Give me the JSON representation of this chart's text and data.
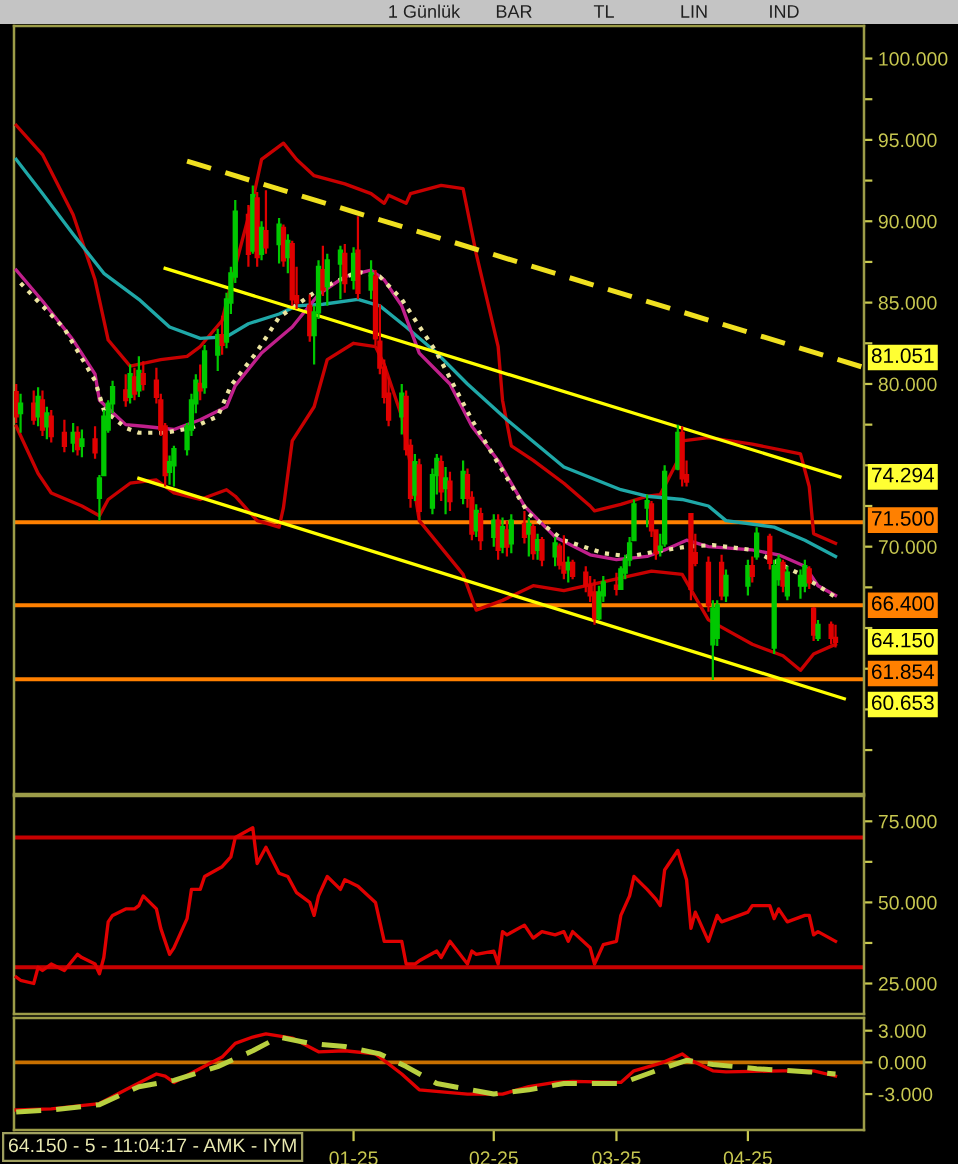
{
  "chart_data": [
    {
      "type": "candlestick",
      "x": [
        "2024-10-17",
        "2024-10-18",
        "2024-10-21",
        "2024-10-22",
        "2024-10-23",
        "2024-10-24",
        "2024-10-25",
        "2024-10-28",
        "2024-10-30",
        "2024-10-31",
        "2024-11-01",
        "2024-11-04",
        "2024-11-05",
        "2024-11-06",
        "2024-11-07",
        "2024-11-08",
        "2024-11-11",
        "2024-11-12",
        "2024-11-13",
        "2024-11-14",
        "2024-11-15",
        "2024-11-18",
        "2024-11-19",
        "2024-11-20",
        "2024-11-21",
        "2024-11-22",
        "2024-11-25",
        "2024-11-26",
        "2024-11-27",
        "2024-11-28",
        "2024-11-29",
        "2024-12-02",
        "2024-12-03",
        "2024-12-04",
        "2024-12-05",
        "2024-12-06",
        "2024-12-09",
        "2024-12-10",
        "2024-12-11",
        "2024-12-12",
        "2024-12-13",
        "2024-12-16",
        "2024-12-17",
        "2024-12-18",
        "2024-12-19",
        "2024-12-20",
        "2024-12-23",
        "2024-12-24",
        "2024-12-25",
        "2024-12-26",
        "2024-12-27",
        "2024-12-30",
        "2024-12-31",
        "2025-01-02",
        "2025-01-03",
        "2025-01-06",
        "2025-01-07",
        "2025-01-08",
        "2025-01-09",
        "2025-01-10",
        "2025-01-13",
        "2025-01-14",
        "2025-01-15",
        "2025-01-16",
        "2025-01-17",
        "2025-01-20",
        "2025-01-21",
        "2025-01-22",
        "2025-01-23",
        "2025-01-24",
        "2025-01-27",
        "2025-01-28",
        "2025-01-29",
        "2025-01-30",
        "2025-01-31",
        "2025-02-03",
        "2025-02-04",
        "2025-02-05",
        "2025-02-06",
        "2025-02-07",
        "2025-02-10",
        "2025-02-11",
        "2025-02-12",
        "2025-02-13",
        "2025-02-14",
        "2025-02-17",
        "2025-02-18",
        "2025-02-19",
        "2025-02-20",
        "2025-02-21",
        "2025-02-24",
        "2025-02-25",
        "2025-02-26",
        "2025-02-27",
        "2025-02-28",
        "2025-03-03",
        "2025-03-04",
        "2025-03-05",
        "2025-03-06",
        "2025-03-07",
        "2025-03-10",
        "2025-03-11",
        "2025-03-12",
        "2025-03-13",
        "2025-03-14",
        "2025-03-17",
        "2025-03-18",
        "2025-03-19",
        "2025-03-20",
        "2025-03-21",
        "2025-03-24",
        "2025-03-25",
        "2025-03-26",
        "2025-03-27",
        "2025-03-28",
        "2025-04-02",
        "2025-04-03",
        "2025-04-04",
        "2025-04-07",
        "2025-04-08",
        "2025-04-09",
        "2025-04-10",
        "2025-04-11",
        "2025-04-14",
        "2025-04-15",
        "2025-04-16",
        "2025-04-17",
        "2025-04-18",
        "2025-04-21",
        "2025-04-22"
      ],
      "ohlc": [
        [
          79.5,
          80.0,
          77.6,
          78.0
        ],
        [
          78.2,
          79.4,
          77.0,
          78.8
        ],
        [
          78.8,
          79.6,
          77.5,
          77.8
        ],
        [
          78.0,
          79.8,
          77.4,
          79.2
        ],
        [
          79.0,
          79.6,
          76.8,
          77.2
        ],
        [
          77.4,
          78.6,
          76.6,
          78.2
        ],
        [
          78.0,
          78.4,
          76.4,
          76.8
        ],
        [
          77.0,
          77.8,
          75.8,
          76.2
        ],
        [
          76.4,
          77.6,
          75.8,
          77.0
        ],
        [
          77.0,
          77.4,
          75.6,
          76.0
        ],
        [
          76.2,
          77.2,
          75.5,
          76.6
        ],
        [
          76.6,
          77.4,
          75.4,
          75.8
        ],
        [
          73.0,
          74.4,
          71.6,
          74.2
        ],
        [
          74.4,
          78.4,
          74.4,
          78.0
        ],
        [
          77.2,
          79.0,
          77.0,
          78.8
        ],
        [
          78.8,
          80.2,
          78.2,
          79.8
        ],
        [
          79.6,
          80.6,
          78.6,
          79.0
        ],
        [
          79.2,
          81.2,
          78.8,
          80.6
        ],
        [
          80.4,
          81.0,
          79.0,
          79.4
        ],
        [
          79.6,
          81.7,
          79.2,
          80.8
        ],
        [
          80.6,
          81.4,
          79.6,
          80.0
        ],
        [
          80.2,
          81.0,
          78.8,
          79.2
        ],
        [
          79.0,
          79.4,
          76.8,
          77.2
        ],
        [
          77.4,
          77.6,
          73.7,
          74.4
        ],
        [
          74.6,
          75.6,
          73.8,
          75.2
        ],
        [
          75.0,
          76.2,
          73.7,
          76.0
        ],
        [
          76.0,
          77.6,
          75.6,
          77.4
        ],
        [
          77.2,
          79.4,
          76.8,
          79.0
        ],
        [
          78.8,
          80.6,
          78.2,
          80.2
        ],
        [
          80.0,
          81.2,
          79.0,
          79.6
        ],
        [
          79.8,
          82.4,
          79.4,
          82.0
        ],
        [
          81.8,
          83.4,
          80.8,
          83.0
        ],
        [
          83.0,
          84.2,
          81.8,
          82.4
        ],
        [
          82.6,
          85.6,
          82.2,
          85.2
        ],
        [
          85.0,
          87.2,
          84.3,
          86.8
        ],
        [
          86.6,
          91.3,
          86.2,
          90.6
        ],
        [
          90.4,
          91.0,
          87.2,
          88.0
        ],
        [
          88.2,
          92.2,
          88.0,
          91.6
        ],
        [
          91.4,
          91.8,
          87.2,
          87.8
        ],
        [
          88.0,
          90.0,
          87.6,
          89.6
        ],
        [
          89.4,
          91.9,
          88.0,
          88.4
        ],
        [
          88.6,
          90.2,
          87.4,
          89.8
        ],
        [
          89.6,
          89.8,
          87.2,
          87.6
        ],
        [
          87.8,
          89.2,
          86.8,
          88.8
        ],
        [
          88.6,
          88.8,
          84.8,
          85.2
        ],
        [
          85.4,
          87.2,
          84.6,
          85.0
        ],
        [
          84.8,
          85.5,
          82.6,
          83.0
        ],
        [
          83.0,
          84.8,
          81.2,
          84.4
        ],
        [
          84.4,
          87.6,
          84.0,
          87.2
        ],
        [
          87.0,
          88.5,
          85.4,
          85.8
        ],
        [
          86.0,
          88.0,
          84.8,
          87.6
        ],
        [
          87.4,
          88.5,
          85.2,
          88.2
        ],
        [
          88.0,
          88.6,
          85.6,
          86.2
        ],
        [
          86.4,
          88.4,
          85.8,
          88.0
        ],
        [
          88.2,
          90.3,
          85.2,
          85.6
        ],
        [
          85.8,
          87.6,
          85.2,
          86.8
        ],
        [
          86.6,
          87.0,
          82.4,
          82.8
        ],
        [
          82.6,
          84.9,
          80.6,
          81.0
        ],
        [
          81.0,
          81.5,
          78.8,
          79.2
        ],
        [
          79.4,
          80.4,
          77.4,
          77.8
        ],
        [
          78.0,
          80.0,
          76.9,
          79.4
        ],
        [
          79.2,
          79.6,
          75.6,
          76.0
        ],
        [
          76.2,
          76.6,
          72.4,
          73.0
        ],
        [
          73.2,
          75.7,
          72.8,
          75.2
        ],
        [
          75.0,
          75.4,
          71.6,
          72.2
        ],
        [
          72.4,
          74.8,
          72.0,
          74.4
        ],
        [
          74.4,
          75.7,
          73.2,
          75.4
        ],
        [
          75.2,
          75.6,
          72.8,
          73.4
        ],
        [
          73.6,
          74.9,
          72.0,
          74.2
        ],
        [
          74.0,
          74.6,
          72.2,
          72.8
        ],
        [
          73.0,
          75.3,
          72.6,
          74.6
        ],
        [
          74.4,
          74.8,
          72.4,
          73.0
        ],
        [
          73.0,
          73.4,
          70.4,
          70.8
        ],
        [
          71.0,
          72.6,
          70.6,
          72.2
        ],
        [
          72.0,
          72.4,
          69.8,
          70.4
        ],
        [
          70.6,
          72.0,
          70.0,
          71.6
        ],
        [
          71.6,
          72.0,
          69.2,
          69.8
        ],
        [
          70.0,
          71.8,
          69.6,
          71.2
        ],
        [
          71.0,
          71.6,
          69.4,
          70.0
        ],
        [
          70.2,
          72.0,
          69.6,
          71.6
        ],
        [
          71.4,
          72.2,
          70.2,
          70.6
        ],
        [
          70.8,
          71.8,
          69.4,
          71.4
        ],
        [
          71.2,
          71.4,
          69.2,
          69.6
        ],
        [
          69.8,
          70.8,
          69.2,
          70.4
        ],
        [
          70.4,
          70.6,
          68.8,
          69.2
        ],
        [
          69.4,
          70.6,
          68.8,
          70.2
        ],
        [
          70.0,
          70.2,
          68.6,
          68.9
        ],
        [
          69.0,
          70.7,
          68.0,
          68.4
        ],
        [
          68.6,
          69.4,
          67.8,
          69.0
        ],
        [
          69.0,
          69.2,
          68.0,
          68.2
        ],
        [
          68.4,
          68.8,
          67.2,
          67.6
        ],
        [
          67.6,
          68.2,
          66.6,
          67.0
        ],
        [
          67.2,
          68.0,
          65.2,
          65.6
        ],
        [
          65.6,
          67.6,
          65.5,
          67.2
        ],
        [
          67.0,
          68.2,
          66.6,
          67.8
        ],
        [
          67.6,
          68.4,
          67.0,
          67.4
        ],
        [
          67.4,
          68.8,
          67.4,
          68.6
        ],
        [
          68.4,
          69.5,
          68.0,
          69.2
        ],
        [
          69.2,
          70.6,
          68.8,
          70.2
        ],
        [
          70.4,
          72.9,
          70.4,
          72.6
        ],
        [
          72.4,
          73.2,
          71.2,
          72.8
        ],
        [
          72.6,
          72.8,
          70.6,
          71.0
        ],
        [
          71.0,
          71.0,
          69.2,
          69.6
        ],
        [
          69.8,
          70.8,
          69.4,
          70.0
        ],
        [
          70.2,
          75.0,
          70.0,
          74.6
        ],
        [
          74.8,
          77.5,
          74.7,
          77.0
        ],
        [
          77.0,
          77.4,
          73.7,
          74.2
        ],
        [
          74.4,
          75.3,
          73.7,
          74.0
        ],
        [
          72.0,
          72.0,
          66.7,
          67.4
        ],
        [
          69.6,
          70.8,
          68.8,
          69.0
        ],
        [
          69.0,
          69.4,
          66.0,
          66.4
        ],
        [
          64.0,
          66.7,
          61.8,
          66.2
        ],
        [
          64.4,
          66.7,
          63.9,
          66.4
        ],
        [
          69.0,
          69.5,
          66.7,
          67.0
        ],
        [
          67.0,
          68.6,
          66.6,
          68.2
        ],
        [
          67.6,
          69.2,
          67.0,
          68.8
        ],
        [
          68.8,
          69.4,
          67.8,
          68.2
        ],
        [
          69.4,
          71.2,
          69.2,
          70.8
        ],
        [
          70.6,
          70.8,
          68.6,
          69.0
        ],
        [
          63.8,
          69.2,
          63.4,
          68.8
        ],
        [
          68.0,
          69.5,
          67.6,
          69.2
        ],
        [
          69.0,
          69.2,
          67.2,
          67.6
        ],
        [
          67.0,
          68.8,
          66.7,
          68.4
        ],
        [
          67.6,
          68.6,
          66.8,
          68.2
        ],
        [
          67.6,
          69.2,
          67.2,
          68.8
        ],
        [
          68.6,
          68.8,
          67.4,
          67.8
        ],
        [
          66.2,
          66.3,
          64.2,
          64.6
        ],
        [
          64.4,
          65.5,
          64.2,
          65.2
        ],
        [
          65.2,
          65.4,
          64.0,
          64.4
        ],
        [
          64.4,
          65.2,
          63.8,
          64.15
        ]
      ],
      "colors": [
        "#e00000",
        "#00c800",
        "#e00000",
        "#00c800",
        "#e00000",
        "#00c800",
        "#e00000",
        "#e00000",
        "#00c800",
        "#e00000",
        "#00c800",
        "#e00000",
        "#00c800",
        "#00c800",
        "#00c800",
        "#00c800",
        "#e00000",
        "#00c800",
        "#e00000",
        "#00c800",
        "#e00000",
        "#e00000",
        "#e00000",
        "#e00000",
        "#00c800",
        "#00c800",
        "#00c800",
        "#00c800",
        "#00c800",
        "#e00000",
        "#00c800",
        "#00c800",
        "#e00000",
        "#00c800",
        "#00c800",
        "#00c800",
        "#e00000",
        "#00c800",
        "#e00000",
        "#00c800",
        "#e00000",
        "#00c800",
        "#e00000",
        "#00c800",
        "#e00000",
        "#e00000",
        "#e00000",
        "#00c800",
        "#00c800",
        "#e00000",
        "#00c800",
        "#00c800",
        "#e00000",
        "#00c800",
        "#e00000",
        "#00c800",
        "#e00000",
        "#e00000",
        "#e00000",
        "#e00000",
        "#00c800",
        "#e00000",
        "#e00000",
        "#00c800",
        "#e00000",
        "#00c800",
        "#00c800",
        "#e00000",
        "#00c800",
        "#e00000",
        "#00c800",
        "#e00000",
        "#e00000",
        "#00c800",
        "#e00000",
        "#00c800",
        "#e00000",
        "#00c800",
        "#e00000",
        "#00c800",
        "#e00000",
        "#00c800",
        "#e00000",
        "#00c800",
        "#e00000",
        "#00c800",
        "#e00000",
        "#e00000",
        "#00c800",
        "#e00000",
        "#e00000",
        "#e00000",
        "#e00000",
        "#00c800",
        "#00c800",
        "#e00000",
        "#00c800",
        "#00c800",
        "#00c800",
        "#00c800",
        "#00c800",
        "#e00000",
        "#e00000",
        "#00c800",
        "#00c800",
        "#00c800",
        "#e00000",
        "#e00000",
        "#e00000",
        "#e00000",
        "#e00000",
        "#00c800",
        "#00c800",
        "#e00000",
        "#00c800",
        "#00c800",
        "#e00000",
        "#00c800",
        "#e00000",
        "#00c800",
        "#00c800",
        "#e00000",
        "#00c800",
        "#00c800",
        "#00c800",
        "#e00000",
        "#e00000",
        "#00c800",
        "#e00000",
        "#e00000"
      ],
      "series": [
        {
          "type": "line",
          "color": "#c80000",
          "x": [
            "2024-10-17",
            "2024-10-23",
            "2024-10-30",
            "2024-11-04",
            "2024-11-07",
            "2024-11-12",
            "2024-11-19",
            "2024-11-25",
            "2024-11-28",
            "2024-12-03",
            "2024-12-06",
            "2024-12-10",
            "2024-12-12",
            "2024-12-17",
            "2024-12-20",
            "2024-12-24",
            "2024-12-31",
            "2025-01-06",
            "2025-01-09",
            "2025-01-10",
            "2025-01-14",
            "2025-01-15",
            "2025-01-22",
            "2025-01-27",
            "2025-01-30",
            "2025-02-04",
            "2025-02-05",
            "2025-02-07",
            "2025-02-12",
            "2025-02-19",
            "2025-02-25",
            "2025-02-26",
            "2025-03-04",
            "2025-03-10",
            "2025-03-13",
            "2025-03-17",
            "2025-03-18",
            "2025-03-24",
            "2025-04-03",
            "2025-04-14",
            "2025-04-16",
            "2025-04-17",
            "2025-04-22"
          ],
          "values": [
            95.9,
            94.1,
            90.4,
            86.4,
            82.7,
            81.1,
            81.5,
            81.7,
            82.3,
            83.9,
            87.2,
            91.3,
            93.8,
            94.8,
            93.8,
            92.8,
            92.3,
            91.7,
            91.1,
            91.6,
            91.1,
            91.7,
            92.2,
            92.0,
            88.0,
            82.3,
            79.0,
            76.2,
            75.3,
            73.9,
            72.5,
            72.2,
            72.6,
            73.1,
            73.2,
            75.3,
            76.5,
            76.7,
            76.3,
            75.7,
            73.7,
            70.8,
            70.2
          ]
        },
        {
          "type": "line",
          "color": "#c80000",
          "x": [
            "2024-10-17",
            "2024-10-22",
            "2024-10-25",
            "2024-11-01",
            "2024-11-05",
            "2024-11-07",
            "2024-11-12",
            "2024-11-18",
            "2024-11-20",
            "2024-11-22",
            "2024-11-28",
            "2024-12-04",
            "2024-12-06",
            "2024-12-11",
            "2024-12-16",
            "2024-12-17",
            "2024-12-19",
            "2024-12-24",
            "2024-12-27",
            "2025-01-02",
            "2025-01-07",
            "2025-01-09",
            "2025-01-13",
            "2025-01-15",
            "2025-01-17",
            "2025-01-27",
            "2025-01-30",
            "2025-02-05",
            "2025-02-12",
            "2025-02-19",
            "2025-03-11",
            "2025-03-18",
            "2025-03-24",
            "2025-04-03",
            "2025-04-10",
            "2025-04-14",
            "2025-04-17",
            "2025-04-22"
          ],
          "values": [
            77.4,
            74.5,
            73.3,
            72.5,
            71.9,
            72.9,
            73.9,
            74.1,
            73.7,
            73.3,
            72.9,
            73.5,
            73.1,
            71.6,
            71.2,
            72.4,
            76.5,
            78.6,
            81.5,
            82.5,
            82.3,
            81.2,
            78.0,
            75.0,
            71.6,
            68.3,
            66.1,
            66.7,
            67.6,
            67.3,
            68.5,
            68.3,
            65.5,
            64.0,
            63.3,
            62.4,
            63.4,
            64.0
          ]
        },
        {
          "type": "line",
          "color": "#1fa8a8",
          "x": [
            "2024-10-17",
            "2024-10-23",
            "2024-10-30",
            "2024-11-06",
            "2024-11-14",
            "2024-11-21",
            "2024-11-28",
            "2024-12-04",
            "2024-12-09",
            "2024-12-16",
            "2024-12-20",
            "2024-12-26",
            "2025-01-03",
            "2025-01-08",
            "2025-01-14",
            "2025-01-21",
            "2025-01-28",
            "2025-02-06",
            "2025-02-19",
            "2025-03-04",
            "2025-03-10",
            "2025-03-18",
            "2025-03-24",
            "2025-03-28",
            "2025-04-08",
            "2025-04-15",
            "2025-04-22"
          ],
          "values": [
            93.8,
            91.7,
            89.2,
            86.8,
            85.2,
            83.5,
            82.8,
            82.9,
            83.7,
            84.3,
            84.8,
            84.9,
            85.2,
            84.8,
            83.5,
            81.9,
            80.0,
            77.8,
            74.9,
            73.5,
            73.1,
            72.9,
            72.5,
            71.6,
            71.2,
            70.4,
            69.4
          ]
        },
        {
          "type": "line",
          "color": "#c0208c",
          "x": [
            "2024-10-17",
            "2024-10-23",
            "2024-10-30",
            "2024-11-04",
            "2024-11-05",
            "2024-11-11",
            "2024-11-15",
            "2024-11-22",
            "2024-11-28",
            "2024-12-04",
            "2024-12-06",
            "2024-12-12",
            "2024-12-19",
            "2024-12-25",
            "2024-12-31",
            "2025-01-06",
            "2025-01-09",
            "2025-01-13",
            "2025-01-17",
            "2025-01-24",
            "2025-01-29",
            "2025-02-04",
            "2025-02-10",
            "2025-02-17",
            "2025-02-25",
            "2025-03-03",
            "2025-03-10",
            "2025-03-14",
            "2025-03-19",
            "2025-03-24",
            "2025-04-03",
            "2025-04-09",
            "2025-04-15",
            "2025-04-18",
            "2025-04-22"
          ],
          "values": [
            87.0,
            85.1,
            82.7,
            80.6,
            79.0,
            77.5,
            77.4,
            77.2,
            77.8,
            78.6,
            79.9,
            81.9,
            83.5,
            85.5,
            86.6,
            87.0,
            86.4,
            84.8,
            81.9,
            80.0,
            77.4,
            75.3,
            72.5,
            70.6,
            69.5,
            69.2,
            69.4,
            69.8,
            70.4,
            70.0,
            69.8,
            69.5,
            68.8,
            67.6,
            67.0
          ]
        },
        {
          "type": "line",
          "color": "#ece4a0",
          "line_style": "dotted",
          "x": [
            "2024-10-18",
            "2024-10-28",
            "2024-11-04",
            "2024-11-06",
            "2024-11-11",
            "2024-11-14",
            "2024-11-20",
            "2024-11-26",
            "2024-12-02",
            "2024-12-05",
            "2024-12-11",
            "2024-12-16",
            "2024-12-25",
            "2025-01-03",
            "2025-01-08",
            "2025-01-13",
            "2025-01-21",
            "2025-01-29",
            "2025-02-11",
            "2025-02-19",
            "2025-02-28",
            "2025-03-06",
            "2025-03-12",
            "2025-03-19",
            "2025-03-25",
            "2025-04-03",
            "2025-04-14",
            "2025-04-22"
          ],
          "values": [
            86.2,
            83.4,
            80.2,
            78.4,
            77.3,
            77.0,
            77.0,
            77.3,
            78.0,
            79.9,
            82.0,
            84.1,
            85.8,
            86.9,
            86.6,
            85.2,
            81.9,
            77.8,
            72.0,
            70.4,
            69.6,
            69.4,
            69.7,
            70.0,
            70.1,
            69.8,
            68.3,
            66.9
          ]
        },
        {
          "type": "line",
          "color": "#f0e020",
          "line_style": "dashed",
          "x": [
            "2024-11-25",
            "2025-04-28"
          ],
          "values": [
            93.7,
            81.051
          ],
          "value_labels": [
            null,
            "81.051"
          ]
        },
        {
          "type": "line",
          "color": "#ffff00",
          "x": [
            "2024-11-20",
            "2025-04-23"
          ],
          "values": [
            87.1,
            74.294
          ],
          "value_labels": [
            null,
            "74.294"
          ]
        },
        {
          "type": "line",
          "color": "#ffff00",
          "x": [
            "2024-11-14",
            "2025-04-24"
          ],
          "values": [
            74.2,
            60.653
          ],
          "value_labels": [
            null,
            "60.653"
          ]
        }
      ],
      "xlim": [
        "2024-10-16T12:00",
        "2025-04-28T12:00"
      ],
      "ylim": [
        54.8,
        102.0
      ],
      "yticks": [
        {
          "value": 100,
          "label": "100.000"
        },
        {
          "value": 97.5,
          "label": null
        },
        {
          "value": 95,
          "label": "95.000"
        },
        {
          "value": 92.5,
          "label": null
        },
        {
          "value": 90,
          "label": "90.000"
        },
        {
          "value": 87.5,
          "label": null
        },
        {
          "value": 85,
          "label": "85.000"
        },
        {
          "value": 82.5,
          "label": null
        },
        {
          "value": 80,
          "label": "80.000"
        },
        {
          "value": 77.5,
          "label": null
        },
        {
          "value": 75,
          "label": null
        },
        {
          "value": 72.5,
          "label": null
        },
        {
          "value": 70,
          "label": "70.000"
        },
        {
          "value": 67.5,
          "label": null
        },
        {
          "value": 65,
          "label": null
        },
        {
          "value": 62.5,
          "label": null
        },
        {
          "value": 60,
          "label": null
        },
        {
          "value": 57.5,
          "label": null
        }
      ],
      "tick_labels": "y",
      "ref_lines": [
        {
          "axis": "y",
          "value": 71.5,
          "label": "71.500",
          "color": "#ff8000"
        },
        {
          "axis": "y",
          "value": 66.4,
          "label": "66.400",
          "color": "#ff8000"
        },
        {
          "axis": "y",
          "value": 61.854,
          "label": "61.854",
          "color": "#ff8000"
        }
      ],
      "annotations": [
        {
          "text": "64.150",
          "y": 64.15
        },
        "1 Günlük",
        "BAR",
        "TL",
        "LIN",
        "IND"
      ]
    },
    {
      "type": "line",
      "series": [
        {
          "color": "#e00000",
          "x": [
            "2024-10-17",
            "2024-10-18",
            "2024-10-21",
            "2024-10-22",
            "2024-10-23",
            "2024-10-25",
            "2024-10-28",
            "2024-10-31",
            "2024-11-01",
            "2024-11-04",
            "2024-11-05",
            "2024-11-06",
            "2024-11-07",
            "2024-11-08",
            "2024-11-11",
            "2024-11-13",
            "2024-11-14",
            "2024-11-15",
            "2024-11-18",
            "2024-11-19",
            "2024-11-21",
            "2024-11-22",
            "2024-11-25",
            "2024-11-26",
            "2024-11-28",
            "2024-11-29",
            "2024-12-03",
            "2024-12-05",
            "2024-12-06",
            "2024-12-10",
            "2024-12-11",
            "2024-12-13",
            "2024-12-16",
            "2024-12-18",
            "2024-12-20",
            "2024-12-23",
            "2024-12-24",
            "2024-12-25",
            "2024-12-27",
            "2024-12-30",
            "2024-12-31",
            "2025-01-03",
            "2025-01-07",
            "2025-01-08",
            "2025-01-09",
            "2025-01-13",
            "2025-01-14",
            "2025-01-16",
            "2025-01-17",
            "2025-01-21",
            "2025-01-22",
            "2025-01-24",
            "2025-01-28",
            "2025-01-29",
            "2025-01-30",
            "2025-02-03",
            "2025-02-04",
            "2025-02-05",
            "2025-02-06",
            "2025-02-10",
            "2025-02-12",
            "2025-02-14",
            "2025-02-17",
            "2025-02-19",
            "2025-02-20",
            "2025-02-21",
            "2025-02-25",
            "2025-02-26",
            "2025-02-28",
            "2025-03-03",
            "2025-03-04",
            "2025-03-06",
            "2025-03-07",
            "2025-03-10",
            "2025-03-12",
            "2025-03-13",
            "2025-03-14",
            "2025-03-17",
            "2025-03-19",
            "2025-03-20",
            "2025-03-21",
            "2025-03-24",
            "2025-03-26",
            "2025-03-27",
            "2025-04-02",
            "2025-04-03",
            "2025-04-07",
            "2025-04-08",
            "2025-04-09",
            "2025-04-11",
            "2025-04-15",
            "2025-04-16",
            "2025-04-17",
            "2025-04-18",
            "2025-04-22"
          ],
          "values": [
            27,
            26,
            25,
            30,
            29,
            31,
            29,
            34,
            33,
            31,
            28,
            33,
            44,
            46,
            48,
            48,
            49,
            52,
            48,
            42,
            34,
            36,
            45,
            54,
            54,
            58,
            61,
            64,
            70,
            73,
            62,
            67,
            59,
            58,
            53,
            50,
            46,
            52,
            58,
            54,
            57,
            55,
            50,
            44,
            38,
            38,
            31,
            31,
            32,
            35,
            33,
            38,
            31,
            35,
            34,
            35,
            31,
            41,
            40,
            43,
            39,
            41,
            40,
            41,
            38,
            41,
            36,
            31,
            37,
            38,
            46,
            52,
            58,
            54,
            51,
            49,
            60,
            66,
            57,
            42,
            47,
            38,
            46,
            44,
            47,
            49,
            49,
            45,
            48,
            44,
            46,
            46,
            40,
            41,
            38
          ]
        }
      ],
      "xlim": [
        "2024-10-16T12:00",
        "2025-04-28T12:00"
      ],
      "ylim": [
        15.6,
        82.8
      ],
      "yticks": [
        {
          "value": 75,
          "label": "75.000"
        },
        {
          "value": 62.5,
          "label": null
        },
        {
          "value": 50,
          "label": "50.000"
        },
        {
          "value": 37.5,
          "label": null
        },
        {
          "value": 25,
          "label": "25.000"
        }
      ],
      "tick_labels": "y",
      "ref_lines": [
        {
          "axis": "y",
          "value": 70,
          "color": "#c80000"
        },
        {
          "axis": "y",
          "value": 30,
          "color": "#c80000"
        }
      ]
    },
    {
      "type": "line",
      "series": [
        {
          "color": "#e00000",
          "x": [
            "2024-10-17",
            "2024-10-25",
            "2024-11-05",
            "2024-11-11",
            "2024-11-18",
            "2024-11-20",
            "2024-11-22",
            "2024-11-27",
            "2024-12-03",
            "2024-12-06",
            "2024-12-10",
            "2024-12-13",
            "2024-12-19",
            "2024-12-25",
            "2024-12-31",
            "2025-01-07",
            "2025-01-13",
            "2025-01-17",
            "2025-01-28",
            "2025-02-05",
            "2025-02-11",
            "2025-02-17",
            "2025-02-21",
            "2025-03-04",
            "2025-03-07",
            "2025-03-13",
            "2025-03-18",
            "2025-03-20",
            "2025-03-25",
            "2025-03-28",
            "2025-04-10",
            "2025-04-17",
            "2025-04-22"
          ],
          "values": [
            -4.5,
            -4.4,
            -3.9,
            -2.6,
            -1.1,
            -1.3,
            -1.9,
            -0.8,
            0.5,
            1.8,
            2.4,
            2.7,
            2.3,
            1.0,
            1.1,
            0.8,
            -1.1,
            -2.6,
            -3.0,
            -3.0,
            -2.3,
            -1.9,
            -1.8,
            -1.9,
            -0.8,
            -0.1,
            0.8,
            0.2,
            -0.8,
            -0.9,
            -0.8,
            -0.8,
            -1.3
          ]
        },
        {
          "color": "#b8d040",
          "line_style": "dashed",
          "x": [
            "2024-10-17",
            "2024-10-25",
            "2024-11-05",
            "2024-11-14",
            "2024-11-22",
            "2024-12-02",
            "2024-12-10",
            "2024-12-16",
            "2024-12-23",
            "2024-12-31",
            "2025-01-08",
            "2025-01-14",
            "2025-01-21",
            "2025-02-03",
            "2025-02-11",
            "2025-02-19",
            "2025-03-04",
            "2025-03-12",
            "2025-03-19",
            "2025-03-25",
            "2025-04-04",
            "2025-04-16",
            "2025-04-22"
          ],
          "values": [
            -4.7,
            -4.5,
            -4.0,
            -2.3,
            -1.7,
            -0.4,
            1.1,
            2.4,
            1.8,
            1.5,
            0.8,
            -0.4,
            -2.0,
            -3.0,
            -2.6,
            -2.0,
            -2.0,
            -0.8,
            0.2,
            -0.2,
            -0.6,
            -0.9,
            -1.1
          ]
        }
      ],
      "xlim": [
        "2024-10-16T12:00",
        "2025-04-28T12:00"
      ],
      "ylim": [
        -6.4,
        4.2
      ],
      "xticks": [
        {
          "value": "2025-01-02",
          "label": "01-25"
        },
        {
          "value": "2025-02-03",
          "label": "02-25"
        },
        {
          "value": "2025-03-03",
          "label": "03-25"
        },
        {
          "value": "2025-04-02",
          "label": "04-25"
        }
      ],
      "yticks": [
        {
          "value": 3,
          "label": "3.000"
        },
        {
          "value": 0,
          "label": "0.000"
        },
        {
          "value": -3,
          "label": "-3.000"
        }
      ],
      "ref_lines": [
        {
          "axis": "y",
          "value": 0,
          "color": "#c87000"
        }
      ],
      "annotations": [
        "64.150 - 5 - 11:04:17 - AMK - IYM"
      ]
    }
  ]
}
